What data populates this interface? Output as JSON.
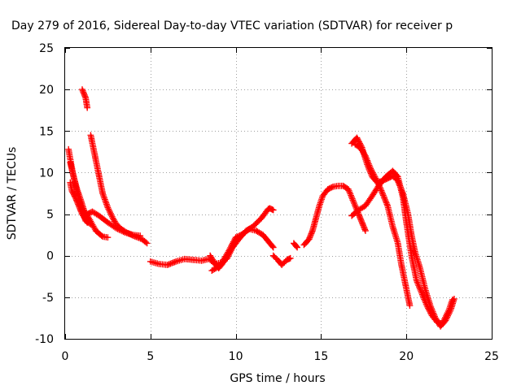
{
  "chart_data": {
    "type": "scatter",
    "title": "Day 279 of 2016, Sidereal Day-to-day VTEC variation (SDTVAR) for receiver p",
    "xlabel": "GPS time / hours",
    "ylabel": "SDTVAR / TECUs",
    "xlim": [
      0,
      25
    ],
    "ylim": [
      -10,
      25
    ],
    "xticks": [
      0,
      5,
      10,
      15,
      20,
      25
    ],
    "yticks": [
      -10,
      -5,
      0,
      5,
      10,
      15,
      20,
      25
    ],
    "xtick_labels": [
      "0",
      "5",
      "10",
      "15",
      "20",
      "25"
    ],
    "ytick_labels": [
      "-10",
      "-5",
      "0",
      "5",
      "10",
      "15",
      "20",
      "25"
    ],
    "grid": true,
    "marker": "+",
    "color": "#ff0000",
    "series": [
      {
        "segments": [
          [
            [
              0.2,
              12.8
            ],
            [
              0.4,
              10.5
            ],
            [
              0.6,
              8.5
            ],
            [
              0.8,
              7.0
            ],
            [
              1.0,
              5.5
            ],
            [
              1.2,
              4.2
            ],
            [
              1.5,
              3.8
            ]
          ],
          [
            [
              0.3,
              8.8
            ],
            [
              0.4,
              7.8
            ],
            [
              0.6,
              7.0
            ],
            [
              0.8,
              6.0
            ],
            [
              1.0,
              5.0
            ],
            [
              1.3,
              4.0
            ]
          ],
          [
            [
              0.3,
              11.2
            ],
            [
              0.5,
              9.5
            ],
            [
              0.7,
              8.0
            ],
            [
              0.9,
              6.8
            ],
            [
              1.1,
              5.5
            ],
            [
              1.4,
              4.5
            ],
            [
              1.8,
              3.0
            ],
            [
              2.2,
              2.3
            ],
            [
              2.5,
              2.2
            ]
          ],
          [
            [
              1.0,
              20.0
            ],
            [
              1.1,
              19.5
            ],
            [
              1.2,
              19.0
            ],
            [
              1.3,
              17.8
            ]
          ],
          [
            [
              1.5,
              14.5
            ],
            [
              1.6,
              13.5
            ],
            [
              1.8,
              11.5
            ],
            [
              2.0,
              9.5
            ],
            [
              2.2,
              7.5
            ],
            [
              2.5,
              5.8
            ],
            [
              2.8,
              4.5
            ],
            [
              3.0,
              3.8
            ],
            [
              3.3,
              3.2
            ],
            [
              3.6,
              2.8
            ],
            [
              4.0,
              2.4
            ],
            [
              4.5,
              2.0
            ],
            [
              4.8,
              1.5
            ]
          ],
          [
            [
              1.3,
              5.0
            ],
            [
              1.6,
              5.3
            ],
            [
              2.0,
              4.8
            ],
            [
              2.5,
              4.0
            ],
            [
              3.0,
              3.3
            ],
            [
              3.5,
              2.8
            ],
            [
              4.0,
              2.5
            ],
            [
              4.4,
              2.4
            ]
          ],
          [
            [
              5.0,
              -0.7
            ],
            [
              5.5,
              -1.0
            ],
            [
              6.0,
              -1.1
            ],
            [
              6.5,
              -0.7
            ],
            [
              7.0,
              -0.4
            ],
            [
              7.5,
              -0.5
            ],
            [
              8.0,
              -0.6
            ],
            [
              8.4,
              -0.4
            ]
          ],
          [
            [
              8.5,
              0.0
            ],
            [
              8.8,
              -1.0
            ],
            [
              9.0,
              -1.5
            ],
            [
              9.2,
              -1.0
            ],
            [
              9.5,
              0.0
            ],
            [
              9.8,
              1.0
            ],
            [
              10.0,
              1.5
            ],
            [
              10.3,
              2.3
            ],
            [
              10.6,
              3.0
            ],
            [
              11.0,
              3.5
            ],
            [
              11.5,
              4.5
            ],
            [
              11.9,
              5.6
            ],
            [
              12.0,
              5.7
            ],
            [
              12.2,
              5.5
            ]
          ],
          [
            [
              8.5,
              -0.5
            ],
            [
              8.8,
              -1.0
            ],
            [
              9.2,
              -0.8
            ],
            [
              9.6,
              0.6
            ],
            [
              10.0,
              2.2
            ],
            [
              10.4,
              2.6
            ],
            [
              10.8,
              3.2
            ],
            [
              11.2,
              3.0
            ],
            [
              11.6,
              2.5
            ],
            [
              12.0,
              1.5
            ],
            [
              12.2,
              1.0
            ]
          ],
          [
            [
              8.6,
              -1.8
            ],
            [
              9.0,
              -1.3
            ],
            [
              9.5,
              -0.3
            ],
            [
              10.0,
              1.8
            ],
            [
              10.4,
              2.5
            ]
          ],
          [
            [
              12.2,
              0.0
            ],
            [
              12.5,
              -0.6
            ],
            [
              12.7,
              -1.1
            ],
            [
              13.0,
              -0.5
            ],
            [
              13.2,
              -0.3
            ]
          ],
          [
            [
              13.4,
              1.5
            ],
            [
              13.6,
              1.0
            ]
          ],
          [
            [
              14.0,
              1.3
            ],
            [
              14.3,
              2.0
            ],
            [
              14.5,
              3.0
            ],
            [
              14.7,
              4.5
            ],
            [
              14.9,
              6.0
            ],
            [
              15.1,
              7.2
            ],
            [
              15.4,
              8.0
            ],
            [
              15.7,
              8.3
            ],
            [
              16.0,
              8.4
            ],
            [
              16.3,
              8.4
            ],
            [
              16.6,
              8.0
            ],
            [
              16.9,
              6.5
            ],
            [
              17.2,
              5.0
            ],
            [
              17.4,
              4.0
            ],
            [
              17.6,
              3.0
            ]
          ],
          [
            [
              16.8,
              13.5
            ],
            [
              17.1,
              14.2
            ],
            [
              17.4,
              13.0
            ],
            [
              17.7,
              11.0
            ],
            [
              18.0,
              9.5
            ],
            [
              18.3,
              8.8
            ],
            [
              18.6,
              9.0
            ],
            [
              18.9,
              9.3
            ],
            [
              19.2,
              9.6
            ],
            [
              19.5,
              9.0
            ],
            [
              19.8,
              7.5
            ],
            [
              20.1,
              5.0
            ],
            [
              20.3,
              2.5
            ],
            [
              20.5,
              0.5
            ],
            [
              20.8,
              -1.5
            ],
            [
              21.1,
              -4.0
            ],
            [
              21.4,
              -6.0
            ],
            [
              21.7,
              -7.5
            ],
            [
              22.0,
              -8.5
            ],
            [
              22.3,
              -7.8
            ],
            [
              22.6,
              -6.5
            ],
            [
              22.8,
              -5.2
            ]
          ],
          [
            [
              16.8,
              4.8
            ],
            [
              17.2,
              5.5
            ],
            [
              17.6,
              6.0
            ],
            [
              18.0,
              7.2
            ],
            [
              18.4,
              8.5
            ],
            [
              18.8,
              9.5
            ],
            [
              19.2,
              10.2
            ],
            [
              19.5,
              9.5
            ],
            [
              19.8,
              7.0
            ],
            [
              20.0,
              4.0
            ],
            [
              20.3,
              0.0
            ],
            [
              20.6,
              -3.0
            ],
            [
              20.9,
              -4.5
            ],
            [
              21.2,
              -6.0
            ],
            [
              21.5,
              -7.2
            ],
            [
              21.8,
              -8.0
            ],
            [
              22.1,
              -8.2
            ],
            [
              22.5,
              -6.5
            ],
            [
              22.7,
              -5.3
            ]
          ],
          [
            [
              17.0,
              13.4
            ],
            [
              17.3,
              13.0
            ],
            [
              17.6,
              12.0
            ],
            [
              17.9,
              10.5
            ],
            [
              18.2,
              9.3
            ],
            [
              18.5,
              8.0
            ],
            [
              18.9,
              6.0
            ],
            [
              19.2,
              3.5
            ],
            [
              19.5,
              1.5
            ],
            [
              19.7,
              -1.0
            ],
            [
              19.9,
              -3.0
            ],
            [
              20.1,
              -5.0
            ],
            [
              20.2,
              -6.0
            ]
          ]
        ]
      }
    ]
  }
}
